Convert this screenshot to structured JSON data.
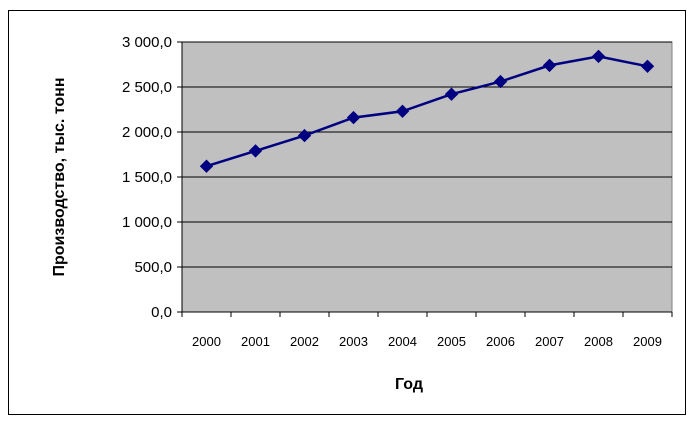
{
  "chart_data": {
    "type": "line",
    "title": "",
    "xlabel": "Год",
    "ylabel": "Производство, тыс. тонн",
    "x": [
      "2000",
      "2001",
      "2002",
      "2003",
      "2004",
      "2005",
      "2006",
      "2007",
      "2008",
      "2009"
    ],
    "series": [
      {
        "values": [
          1620,
          1790,
          1960,
          2160,
          2230,
          2420,
          2560,
          2740,
          2840,
          2730
        ]
      }
    ],
    "ylim": [
      0,
      3000
    ],
    "yticks": [
      0,
      500,
      1000,
      1500,
      2000,
      2500,
      3000
    ],
    "ytick_labels": [
      "0,0",
      "500,0",
      "1 000,0",
      "1 500,0",
      "2 000,0",
      "2 500,0",
      "3 000,0"
    ],
    "grid": "horizontal",
    "legend": "none",
    "colors": {
      "plot_background": "#c0c0c0",
      "line": "#000080",
      "marker": "#000080",
      "grid": "#000000"
    }
  }
}
